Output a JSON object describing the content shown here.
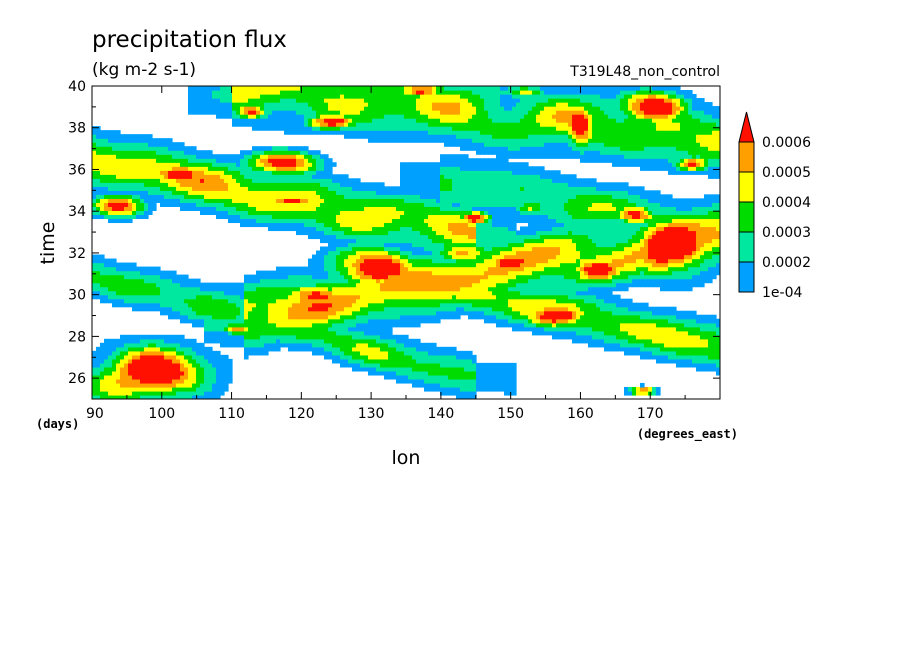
{
  "chart_data": {
    "type": "heatmap",
    "title": "precipitation flux",
    "units": "(kg m-2 s-1)",
    "run_label": "T319L48_non_control",
    "xlabel": "lon",
    "ylabel": "time",
    "x_units": "(degrees_east)",
    "y_units": "(days)",
    "xlim": [
      90,
      180
    ],
    "ylim": [
      25,
      40
    ],
    "x_ticks": [
      90,
      100,
      110,
      120,
      130,
      140,
      150,
      160,
      170
    ],
    "y_ticks": [
      26,
      28,
      30,
      32,
      34,
      36,
      38,
      40
    ],
    "legend": {
      "placement": "right",
      "levels": [
        "1e-04",
        "0.0002",
        "0.0003",
        "0.0004",
        "0.0005",
        "0.0006"
      ],
      "colors": [
        "#ffffff",
        "#00a0ff",
        "#00e8a0",
        "#00dc00",
        "#ffff00",
        "#ffa000",
        "#ff1000"
      ]
    },
    "precipitation_bands": [
      {
        "lon_start": 90,
        "lon_end": 145,
        "time_start": 36.5,
        "time_end": 32.8,
        "width_days": 1.3,
        "peak": 0.00065
      },
      {
        "lon_start": 112,
        "lon_end": 180,
        "time_start": 29.0,
        "time_end": 33.0,
        "width_days": 1.5,
        "peak": 0.0007
      },
      {
        "lon_start": 140,
        "lon_end": 180,
        "time_start": 30.5,
        "time_end": 27.5,
        "width_days": 1.1,
        "peak": 0.0006
      },
      {
        "lon_start": 90,
        "lon_end": 145,
        "time_start": 31.0,
        "time_end": 26.0,
        "width_days": 1.0,
        "peak": 0.00048
      },
      {
        "lon_start": 110,
        "lon_end": 180,
        "time_start": 40.0,
        "time_end": 37.5,
        "width_days": 1.6,
        "peak": 0.00055
      },
      {
        "lon_start": 140,
        "lon_end": 180,
        "time_start": 35.5,
        "time_end": 33.0,
        "width_days": 1.3,
        "peak": 0.00045
      }
    ],
    "precipitation_blobs": [
      {
        "lon": 94,
        "time": 34.3,
        "lon_radius": 4.0,
        "time_radius": 0.55,
        "peak": 0.00065
      },
      {
        "lon": 98,
        "time": 26.2,
        "lon_radius": 9.0,
        "time_radius": 1.4,
        "peak": 0.0007
      },
      {
        "lon": 102,
        "time": 35.8,
        "lon_radius": 5.0,
        "time_radius": 0.5,
        "peak": 0.00065
      },
      {
        "lon": 117,
        "time": 36.3,
        "lon_radius": 5.5,
        "time_radius": 0.6,
        "peak": 0.0007
      },
      {
        "lon": 113,
        "time": 38.8,
        "lon_radius": 2.5,
        "time_radius": 0.4,
        "peak": 0.0006
      },
      {
        "lon": 124,
        "time": 38.3,
        "lon_radius": 4.0,
        "time_radius": 0.4,
        "peak": 0.00065
      },
      {
        "lon": 119,
        "time": 34.5,
        "lon_radius": 5.0,
        "time_radius": 0.3,
        "peak": 0.0006
      },
      {
        "lon": 130,
        "time": 31.3,
        "lon_radius": 6.5,
        "time_radius": 1.0,
        "peak": 0.00072
      },
      {
        "lon": 122,
        "time": 30.0,
        "lon_radius": 5.0,
        "time_radius": 0.6,
        "peak": 0.00065
      },
      {
        "lon": 143,
        "time": 32.0,
        "lon_radius": 4.0,
        "time_radius": 0.5,
        "peak": 0.00065
      },
      {
        "lon": 150,
        "time": 31.5,
        "lon_radius": 4.0,
        "time_radius": 0.6,
        "peak": 0.00065
      },
      {
        "lon": 157,
        "time": 29.0,
        "lon_radius": 5.0,
        "time_radius": 0.6,
        "peak": 0.00068
      },
      {
        "lon": 173,
        "time": 32.3,
        "lon_radius": 6.5,
        "time_radius": 1.5,
        "peak": 0.00075
      },
      {
        "lon": 162,
        "time": 31.3,
        "lon_radius": 4.0,
        "time_radius": 0.7,
        "peak": 0.00068
      },
      {
        "lon": 168,
        "time": 33.8,
        "lon_radius": 3.0,
        "time_radius": 0.5,
        "peak": 0.00068
      },
      {
        "lon": 170,
        "time": 39.0,
        "lon_radius": 5.5,
        "time_radius": 0.8,
        "peak": 0.00072
      },
      {
        "lon": 160,
        "time": 38.0,
        "lon_radius": 2.5,
        "time_radius": 1.2,
        "peak": 0.00066
      },
      {
        "lon": 137,
        "time": 39.8,
        "lon_radius": 3.5,
        "time_radius": 0.3,
        "peak": 0.0006
      },
      {
        "lon": 152,
        "time": 39.7,
        "lon_radius": 3.0,
        "time_radius": 0.3,
        "peak": 0.00058
      },
      {
        "lon": 111,
        "time": 28.4,
        "lon_radius": 2.5,
        "time_radius": 0.3,
        "peak": 0.0006
      },
      {
        "lon": 176,
        "time": 36.3,
        "lon_radius": 2.5,
        "time_radius": 0.4,
        "peak": 0.00058
      },
      {
        "lon": 153,
        "time": 34.2,
        "lon_radius": 2.5,
        "time_radius": 0.4,
        "peak": 0.0006
      },
      {
        "lon": 145,
        "time": 33.7,
        "lon_radius": 2.5,
        "time_radius": 0.35,
        "peak": 0.00058
      },
      {
        "lon": 169,
        "time": 25.4,
        "lon_radius": 2.0,
        "time_radius": 0.2,
        "peak": 0.0006
      }
    ]
  }
}
